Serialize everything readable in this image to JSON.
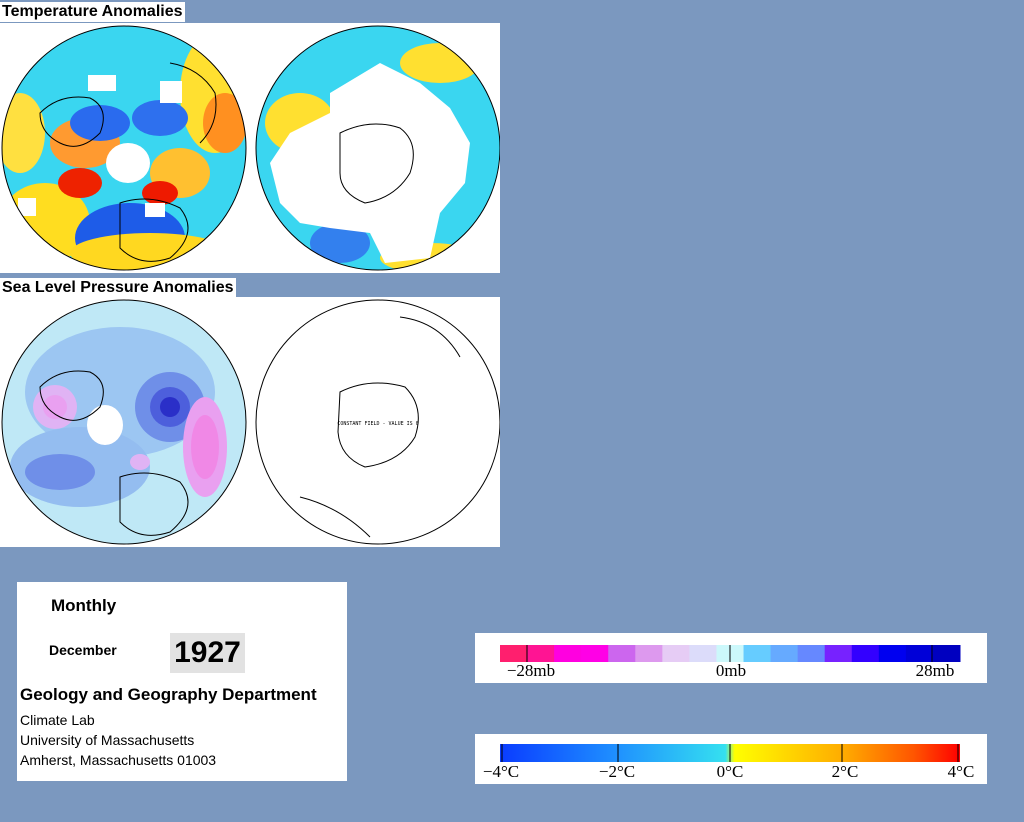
{
  "titles": {
    "temperature": "Temperature Anomalies",
    "pressure": "Sea Level Pressure Anomalies"
  },
  "maps": {
    "south_pressure_note": "CONSTANT FIELD - VALUE IS 0"
  },
  "info": {
    "period": "Monthly",
    "month": "December",
    "year": "1927",
    "department": "Geology and Geography Department",
    "lines": [
      "Climate Lab",
      "University of Massachusetts",
      "Amherst, Massachusetts 01003"
    ]
  },
  "pressure_legend": {
    "labels": [
      "−28mb",
      "0mb",
      "28mb"
    ],
    "colors": [
      "#ff1f6e",
      "#ff1493",
      "#ff00e0",
      "#ff00e6",
      "#cc66ee",
      "#dd99ee",
      "#e6ccf5",
      "#dcdcfa",
      "#ccf8fb",
      "#66ccff",
      "#66aaff",
      "#6688ff",
      "#7722ff",
      "#3300ff",
      "#0000f0",
      "#0000d8",
      "#0000c0"
    ]
  },
  "temperature_legend": {
    "labels": [
      "−4°C",
      "−2°C",
      "0°C",
      "2°C",
      "4°C"
    ],
    "gradient": [
      "#0a3cff",
      "#1e8cff",
      "#35e0f0",
      "#ffff00",
      "#ffaa00",
      "#ff5500",
      "#ff0000"
    ]
  },
  "colors": {
    "background": "#7b98bf",
    "temp_white_gap": "#ffffff",
    "pressure_base": "#bfe8f6",
    "pressure_low": "#6f8fe8",
    "pressure_high": "#e9a0f0"
  }
}
